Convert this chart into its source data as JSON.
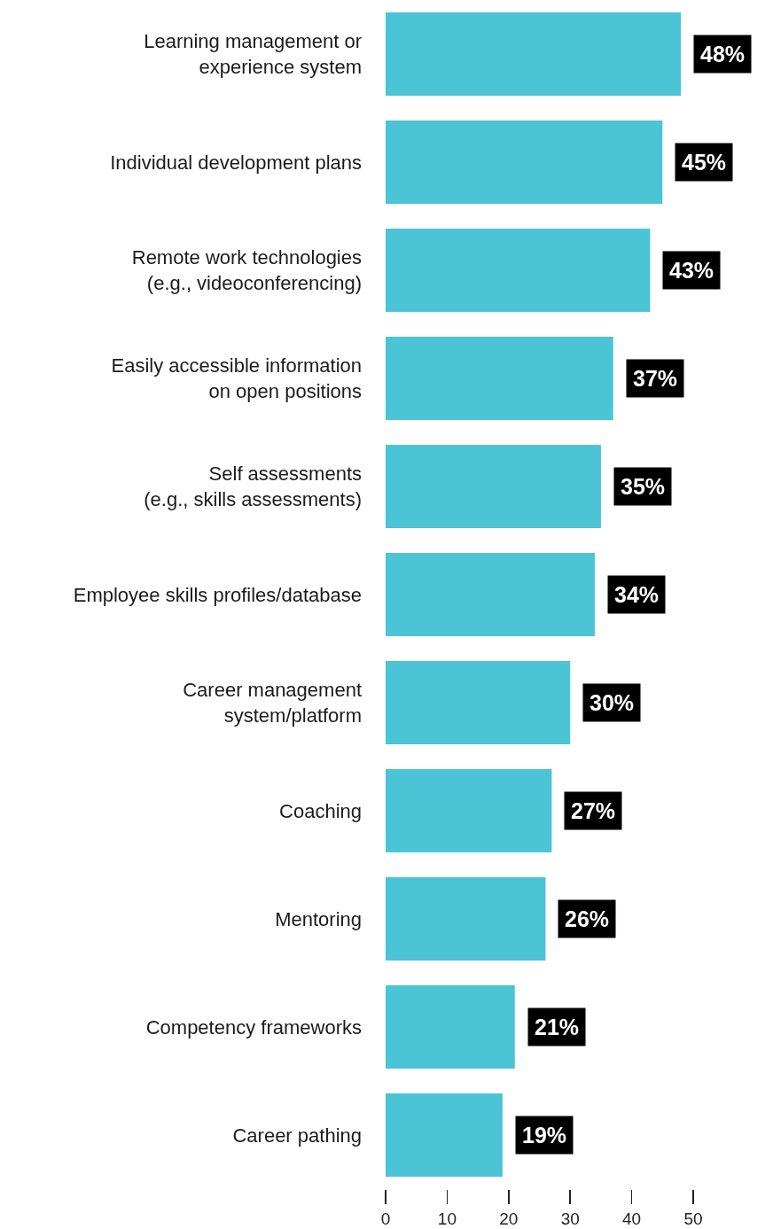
{
  "chart_data": {
    "type": "bar",
    "orientation": "horizontal",
    "categories": [
      "Learning management or\nexperience system",
      "Individual development plans",
      "Remote work technologies\n(e.g., videoconferencing)",
      "Easily accessible information\non open positions",
      "Self assessments\n(e.g., skills assessments)",
      "Employee skills profiles/database",
      "Career management\nsystem/platform",
      "Coaching",
      "Mentoring",
      "Competency frameworks",
      "Career pathing"
    ],
    "values": [
      48,
      45,
      43,
      37,
      35,
      34,
      30,
      27,
      26,
      21,
      19
    ],
    "value_labels": [
      "48%",
      "45%",
      "43%",
      "37%",
      "35%",
      "34%",
      "30%",
      "27%",
      "26%",
      "21%",
      "19%"
    ],
    "color": "#4bc4d6",
    "xlim": [
      0,
      50
    ],
    "xticks": [
      0,
      10,
      20,
      30,
      40,
      50
    ],
    "grid": false,
    "legend": false
  }
}
